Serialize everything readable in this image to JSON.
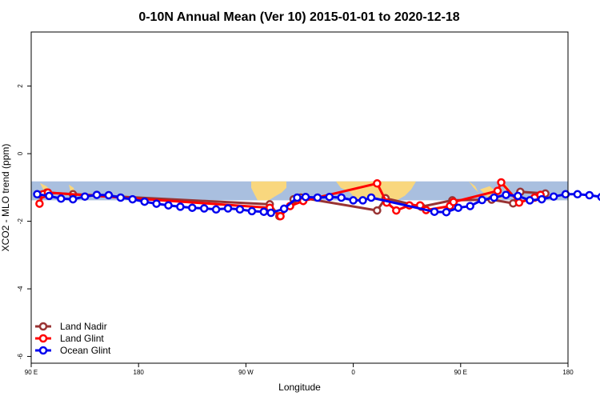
{
  "chart_data": {
    "type": "line",
    "title": "0-10N Annual Mean (Ver 10)   2015-01-01 to 2020-12-18",
    "xlabel": "Longitude",
    "ylabel": "XCO2 - MLO trend (ppm)",
    "xlim": [
      90,
      540
    ],
    "ylim": [
      -6.2,
      3.6
    ],
    "x_ticks": [
      {
        "value": 90,
        "label": "90 E"
      },
      {
        "value": 180,
        "label": "180"
      },
      {
        "value": 270,
        "label": "90 W"
      },
      {
        "value": 360,
        "label": "0"
      },
      {
        "value": 450,
        "label": "90 E"
      },
      {
        "value": 540,
        "label": "180"
      }
    ],
    "y_ticks": [
      {
        "value": -6,
        "label": "-6"
      },
      {
        "value": -4,
        "label": "-4"
      },
      {
        "value": -2,
        "label": "-2"
      },
      {
        "value": 0,
        "label": "0"
      },
      {
        "value": 2,
        "label": "2"
      }
    ],
    "background_band": {
      "ymin": -1.38,
      "ymax": -0.82,
      "ocean_color": "#a9bfdf",
      "land_color": "#f9d77e"
    },
    "legend_position": "bottom-left",
    "series": [
      {
        "name": "Land Nadir",
        "color": "#993333",
        "points": [
          [
            98,
            -1.22
          ],
          [
            103,
            -1.15
          ],
          [
            125,
            -1.2
          ],
          [
            290,
            -1.5
          ],
          [
            298,
            -1.85
          ],
          [
            310,
            -1.35
          ],
          [
            316,
            -1.3
          ],
          [
            380,
            -1.68
          ],
          [
            387,
            -1.32
          ],
          [
            417,
            -1.57
          ],
          [
            443,
            -1.38
          ],
          [
            476,
            -1.36
          ],
          [
            494,
            -1.47
          ],
          [
            500,
            -1.13
          ],
          [
            521,
            -1.18
          ]
        ]
      },
      {
        "name": "Land Glint",
        "color": "#ff0000",
        "points": [
          [
            97,
            -1.48
          ],
          [
            100,
            -1.2
          ],
          [
            104,
            -1.15
          ],
          [
            290,
            -1.6
          ],
          [
            299,
            -1.85
          ],
          [
            307,
            -1.55
          ],
          [
            318,
            -1.4
          ],
          [
            380,
            -0.88
          ],
          [
            388,
            -1.45
          ],
          [
            396,
            -1.68
          ],
          [
            407,
            -1.53
          ],
          [
            416,
            -1.53
          ],
          [
            421,
            -1.67
          ],
          [
            441,
            -1.55
          ],
          [
            444,
            -1.43
          ],
          [
            481,
            -1.1
          ],
          [
            484,
            -0.85
          ],
          [
            499,
            -1.45
          ],
          [
            512,
            -1.3
          ],
          [
            517,
            -1.22
          ]
        ]
      },
      {
        "name": "Ocean Glint",
        "color": "#0000ee",
        "points": [
          [
            95,
            -1.2
          ],
          [
            105,
            -1.25
          ],
          [
            115,
            -1.33
          ],
          [
            125,
            -1.35
          ],
          [
            135,
            -1.27
          ],
          [
            145,
            -1.22
          ],
          [
            155,
            -1.23
          ],
          [
            165,
            -1.3
          ],
          [
            175,
            -1.35
          ],
          [
            185,
            -1.42
          ],
          [
            195,
            -1.48
          ],
          [
            205,
            -1.53
          ],
          [
            215,
            -1.57
          ],
          [
            225,
            -1.6
          ],
          [
            235,
            -1.62
          ],
          [
            245,
            -1.65
          ],
          [
            255,
            -1.62
          ],
          [
            265,
            -1.65
          ],
          [
            275,
            -1.7
          ],
          [
            285,
            -1.72
          ],
          [
            291,
            -1.75
          ],
          [
            302,
            -1.63
          ],
          [
            313,
            -1.3
          ],
          [
            320,
            -1.28
          ],
          [
            330,
            -1.3
          ],
          [
            340,
            -1.28
          ],
          [
            350,
            -1.3
          ],
          [
            360,
            -1.38
          ],
          [
            368,
            -1.38
          ],
          [
            375,
            -1.3
          ],
          [
            428,
            -1.72
          ],
          [
            438,
            -1.73
          ],
          [
            448,
            -1.6
          ],
          [
            458,
            -1.55
          ],
          [
            468,
            -1.37
          ],
          [
            478,
            -1.3
          ],
          [
            488,
            -1.22
          ],
          [
            498,
            -1.25
          ],
          [
            508,
            -1.38
          ],
          [
            518,
            -1.35
          ],
          [
            528,
            -1.27
          ],
          [
            538,
            -1.2
          ],
          [
            548,
            -1.2
          ],
          [
            558,
            -1.23
          ],
          [
            568,
            -1.28
          ],
          [
            578,
            -1.33
          ]
        ]
      }
    ]
  }
}
